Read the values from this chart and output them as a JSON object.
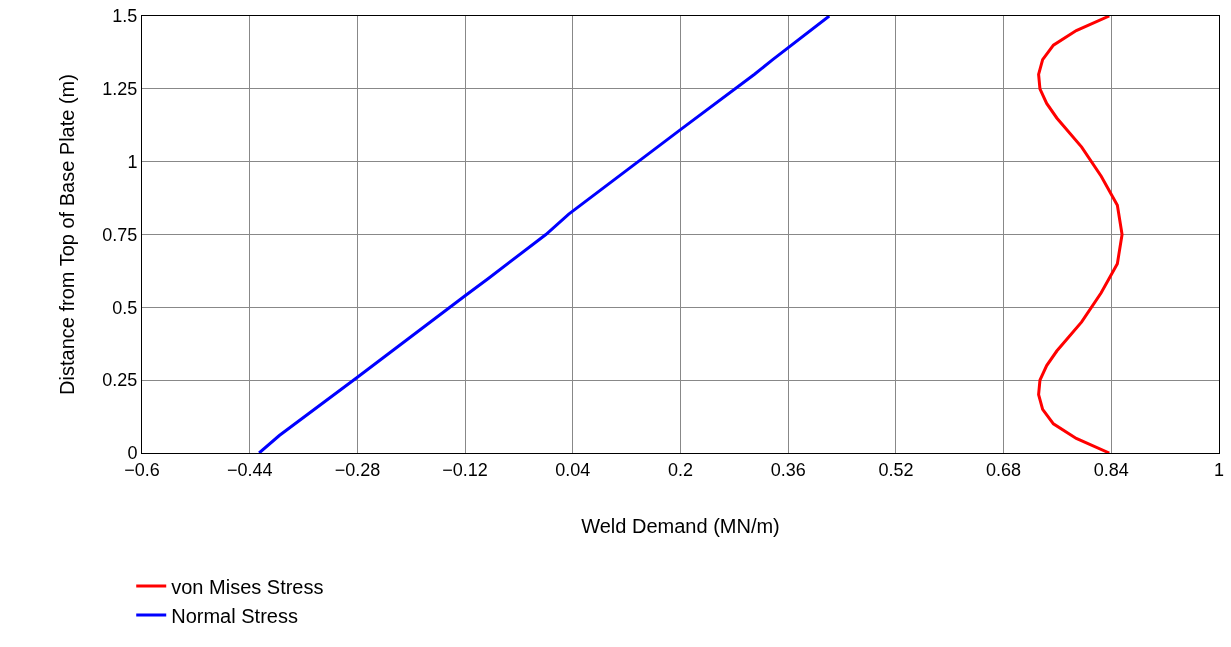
{
  "chart_data": {
    "type": "line",
    "xlabel": "Weld Demand (MN/m)",
    "ylabel": "Distance from Top of Base Plate (m)",
    "xlim": [
      -0.6,
      1
    ],
    "xticks": [
      {
        "value": -0.6,
        "label": "−0.6"
      },
      {
        "value": -0.44,
        "label": "−0.44"
      },
      {
        "value": -0.28,
        "label": "−0.28"
      },
      {
        "value": -0.12,
        "label": "−0.12"
      },
      0.04,
      0.2,
      0.36,
      0.52,
      0.68,
      0.84,
      1
    ],
    "ylim": [
      0,
      1.5
    ],
    "yticks": [
      0,
      0.25,
      0.5,
      0.75,
      1,
      1.25,
      1.5
    ],
    "grid": true,
    "legend": "bottom left",
    "marker": "none",
    "line_style": "solid",
    "series": [
      {
        "name": "von Mises Stress",
        "color": "#ff0000",
        "x": [
          0.837,
          0.788,
          0.754,
          0.738,
          0.732,
          0.734,
          0.744,
          0.759,
          0.796,
          0.825,
          0.849,
          0.856,
          0.849,
          0.825,
          0.796,
          0.759,
          0.744,
          0.734,
          0.732,
          0.738,
          0.754,
          0.788,
          0.837
        ],
        "values": [
          0,
          0.05,
          0.1,
          0.15,
          0.2,
          0.25,
          0.3,
          0.35,
          0.45,
          0.55,
          0.65,
          0.75,
          0.85,
          0.95,
          1.05,
          1.15,
          1.2,
          1.25,
          1.3,
          1.35,
          1.4,
          1.45,
          1.5
        ]
      },
      {
        "name": "Normal Stress",
        "color": "#0000ff",
        "x": [
          -0.426,
          -0.396,
          -0.28,
          -0.12,
          -0.085,
          0,
          0.034,
          0.2,
          0.31,
          0.337,
          0.421
        ],
        "values": [
          0,
          0.06,
          0.26,
          0.54,
          0.6,
          0.75,
          0.82,
          1.11,
          1.3,
          1.35,
          1.5
        ]
      }
    ]
  }
}
